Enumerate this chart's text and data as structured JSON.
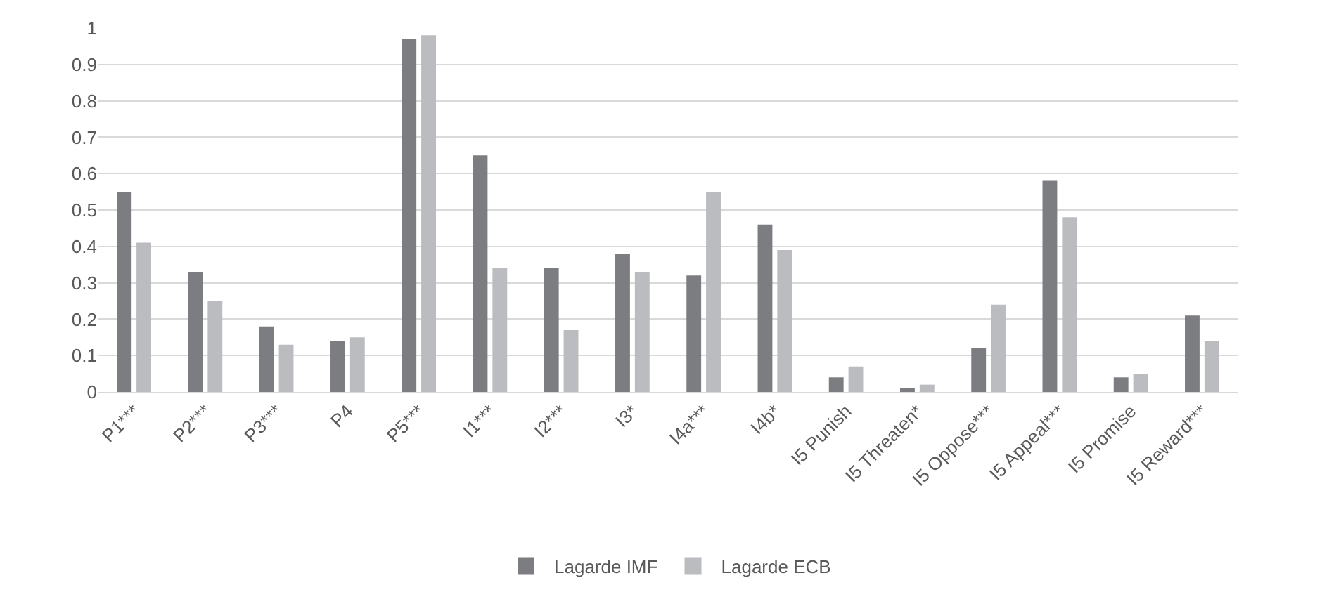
{
  "chart_data": {
    "type": "bar",
    "categories": [
      "P1***",
      "P2***",
      "P3***",
      "P4",
      "P5***",
      "I1***",
      "I2***",
      "I3*",
      "I4a***",
      "I4b*",
      "I5 Punish",
      "I5 Threaten*",
      "I5 Oppose***",
      "I5 Appeal***",
      "I5 Promise",
      "I5 Reward***"
    ],
    "series": [
      {
        "name": "Lagarde IMF",
        "color": "#7c7d81",
        "values": [
          0.55,
          0.33,
          0.18,
          0.14,
          0.97,
          0.65,
          0.34,
          0.38,
          0.32,
          0.46,
          0.04,
          0.01,
          0.12,
          0.58,
          0.04,
          0.21
        ]
      },
      {
        "name": "Lagarde ECB",
        "color": "#bbbcbf",
        "values": [
          0.41,
          0.25,
          0.13,
          0.15,
          0.98,
          0.34,
          0.17,
          0.33,
          0.55,
          0.39,
          0.07,
          0.02,
          0.24,
          0.48,
          0.05,
          0.14
        ]
      }
    ],
    "ylim": [
      0,
      1
    ],
    "yticks": [
      0,
      0.1,
      0.2,
      0.3,
      0.4,
      0.5,
      0.6,
      0.7,
      0.8,
      0.9,
      1
    ],
    "grid": "y",
    "legend": "bottom"
  }
}
